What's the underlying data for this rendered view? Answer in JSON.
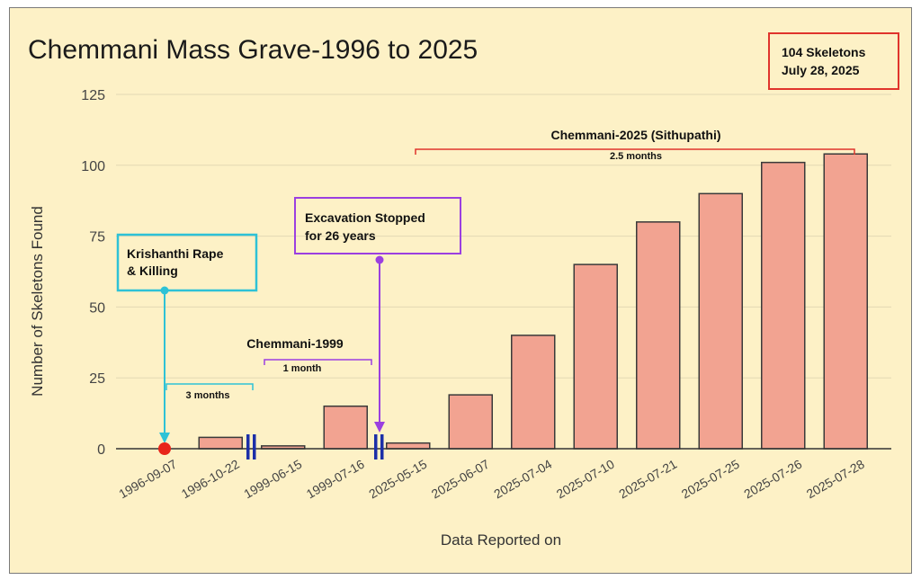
{
  "chart_data": {
    "type": "bar",
    "title": "Chemmani Mass Grave-1996 to 2025",
    "xlabel": "Data Reported on",
    "ylabel": "Number of Skeletons Found",
    "ylim": [
      0,
      125
    ],
    "yticks": [
      0,
      25,
      50,
      75,
      100,
      125
    ],
    "grid": true,
    "categories": [
      "1996-09-07",
      "1996-10-22",
      "1999-06-15",
      "1999-07-16",
      "2025-05-15",
      "2025-06-07",
      "2025-07-04",
      "2025-07-10",
      "2025-07-21",
      "2025-07-25",
      "2025-07-26",
      "2025-07-28"
    ],
    "values": [
      0,
      4,
      1,
      15,
      2,
      19,
      40,
      65,
      80,
      90,
      101,
      104
    ],
    "colors": {
      "bar": "#f2a391",
      "bar_stroke": "#3a3a3a",
      "background": "#fdf1c6",
      "grid": "#e3d9b4",
      "point": "#e8251b"
    },
    "annotations": {
      "summary_box": {
        "line1": "104 Skeletons",
        "line2": "July 28, 2025",
        "color": "#e0342c"
      },
      "krishanthi": {
        "line1": "Krishanthi Rape",
        "line2": "& Killing",
        "color": "#2ec2d6",
        "category": "1996-09-07"
      },
      "excavation": {
        "line1": "Excavation Stopped",
        "line2": "for 26 years",
        "color": "#9b3fe0",
        "category": "2025-05-15"
      },
      "chemmani1999": {
        "label": "Chemmani-1999",
        "sublabel": "1 month",
        "color": "#9b3fe0"
      },
      "three_months": {
        "label": "3 months",
        "color": "#2ec2d6"
      },
      "chemmani2025": {
        "label": "Chemmani-2025 (Sithupathi)",
        "sublabel": "2.5 months",
        "color": "#e0342c"
      },
      "break_color": "#1c2fa8"
    }
  }
}
